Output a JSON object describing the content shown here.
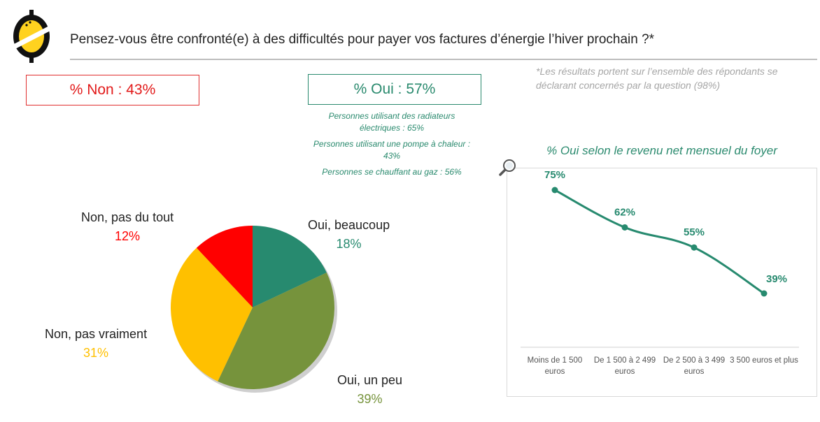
{
  "header": {
    "title": "Pensez-vous être confronté(e) à des difficultés pour payer vos factures d’énergie l’hiver prochain ?*",
    "note": "*Les résultats portent sur l’ensemble des répondants se déclarant concernés par la question (98%)"
  },
  "summary": {
    "non_label": "% Non : 43%",
    "oui_label": "% Oui : 57%",
    "oui_details": [
      "Personnes utilisant des radiateurs électriques : 65%",
      "Personnes utilisant une pompe à chaleur : 43%",
      "Personnes se chauffant au gaz : 56%"
    ]
  },
  "colors": {
    "red": "#ff0000",
    "yellow": "#ffc000",
    "olive": "#76933c",
    "teal": "#278a6f"
  },
  "chart_data": [
    {
      "type": "pie",
      "slices": [
        {
          "label": "Oui, beaucoup",
          "value": 18,
          "value_label": "18%",
          "color": "#278a6f"
        },
        {
          "label": "Oui, un peu",
          "value": 39,
          "value_label": "39%",
          "color": "#76933c"
        },
        {
          "label": "Non, pas vraiment",
          "value": 31,
          "value_label": "31%",
          "color": "#ffc000"
        },
        {
          "label": "Non, pas du tout",
          "value": 12,
          "value_label": "12%",
          "color": "#ff0000"
        }
      ]
    },
    {
      "type": "line",
      "title": "% Oui selon le revenu net mensuel du foyer",
      "categories": [
        "Moins de 1 500 euros",
        "De 1 500 à 2 499 euros",
        "De 2 500 à 3 499 euros",
        "3 500 euros et plus"
      ],
      "series": [
        {
          "values": [
            75,
            62,
            55,
            39
          ],
          "labels": [
            "75%",
            "62%",
            "55%",
            "39%"
          ],
          "color": "#278a6f"
        }
      ],
      "ylim": [
        0,
        100
      ]
    }
  ]
}
